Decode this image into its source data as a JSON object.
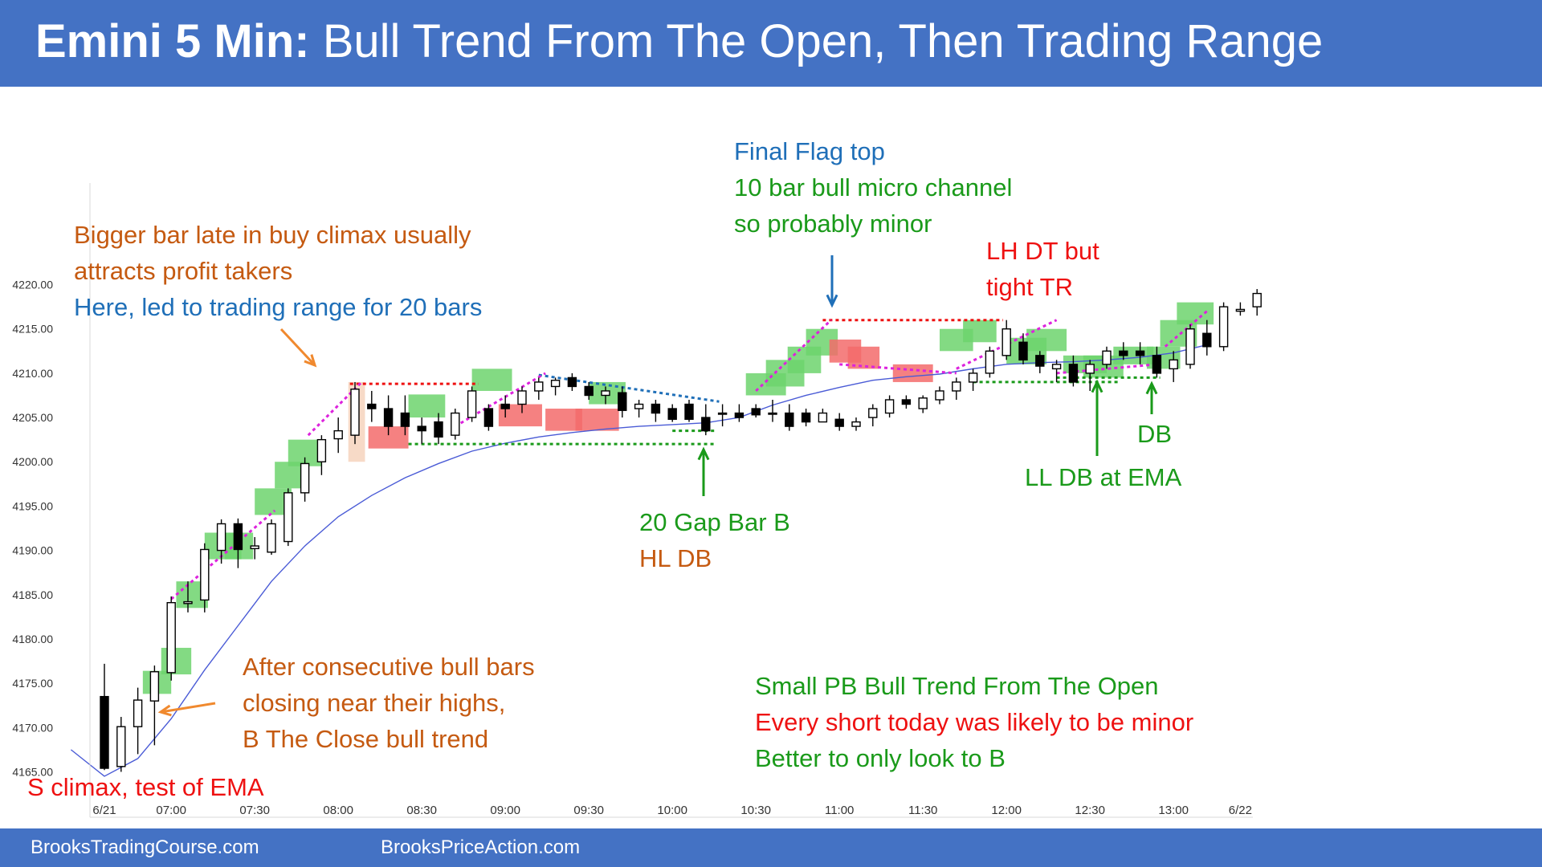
{
  "header": {
    "title_bold": "Emini 5 Min:",
    "title_rest": " Bull Trend From The Open, Then Trading Range"
  },
  "footer": {
    "left": "BrooksTradingCourse.com",
    "right": "BrooksPriceAction.com"
  },
  "colors": {
    "banner": "#4472c4",
    "bull_highlight": "#6dd36d",
    "bear_highlight": "#f36b6b",
    "climax_highlight": "#f6d3bd",
    "ema": "#4a5bd6",
    "resistance_line": "#ee1111",
    "support_line": "#1a9a1a",
    "micro_channel_line": "#dd22dd",
    "bear_trendline": "#1f6fb8",
    "annotation_orange": "#c55a11",
    "annotation_blue": "#1f6fb8",
    "annotation_green": "#1a9a1a",
    "annotation_red": "#ee1111"
  },
  "annotations": {
    "climax_note": {
      "line1": "Bigger bar late in buy climax usually",
      "line2": "attracts profit takers",
      "line3": "Here, led to trading range for 20 bars"
    },
    "final_flag": {
      "line1": "Final Flag top",
      "line2": "10 bar bull micro channel",
      "line3": "so probably minor"
    },
    "lh_dt": {
      "line1": "LH DT but",
      "line2": "tight TR"
    },
    "gap_bar": {
      "line1": "20 Gap Bar B",
      "line2": "HL DB"
    },
    "ll_db": "LL DB at EMA",
    "db": "DB",
    "consecutive": {
      "line1": "After consecutive bull bars",
      "line2": "closing near their highs,",
      "line3": "B The Close bull trend"
    },
    "s_climax": "S climax, test of EMA",
    "summary": {
      "line1": "Small PB Bull Trend From The Open",
      "line2": "Every short today was likely to be minor",
      "line3": "Better to only look to B"
    }
  },
  "chart_data": {
    "type": "candlestick",
    "y_ticks": [
      "4165.00",
      "4170.00",
      "4175.00",
      "4180.00",
      "4185.00",
      "4190.00",
      "4195.00",
      "4200.00",
      "4205.00",
      "4210.00",
      "4215.00",
      "4220.00"
    ],
    "ylim": [
      4163.5,
      4221.5
    ],
    "x_ticks": [
      "6/21",
      "07:00",
      "07:30",
      "08:00",
      "08:30",
      "09:00",
      "09:30",
      "10:00",
      "10:30",
      "11:00",
      "11:30",
      "12:00",
      "12:30",
      "13:00",
      "6/22"
    ],
    "x_tick_bars": [
      0,
      4,
      9,
      14,
      19,
      24,
      29,
      34,
      39,
      44,
      49,
      54,
      59,
      64,
      68
    ],
    "bar_count": 70,
    "candles": [
      {
        "i": 0,
        "o": 4173.5,
        "h": 4177.2,
        "l": 4165.2,
        "c": 4165.4
      },
      {
        "i": 1,
        "o": 4165.6,
        "h": 4171.2,
        "l": 4165.0,
        "c": 4170.1
      },
      {
        "i": 2,
        "o": 4170.1,
        "h": 4174.5,
        "l": 4167.0,
        "c": 4173.1
      },
      {
        "i": 3,
        "o": 4173.0,
        "h": 4177.0,
        "l": 4168.0,
        "c": 4176.3
      },
      {
        "i": 4,
        "o": 4176.2,
        "h": 4184.8,
        "l": 4175.3,
        "c": 4184.1
      },
      {
        "i": 5,
        "o": 4184.0,
        "h": 4186.5,
        "l": 4183.0,
        "c": 4184.2
      },
      {
        "i": 6,
        "o": 4184.4,
        "h": 4190.8,
        "l": 4183.0,
        "c": 4190.1
      },
      {
        "i": 7,
        "o": 4190.0,
        "h": 4193.5,
        "l": 4188.5,
        "c": 4193.0
      },
      {
        "i": 8,
        "o": 4193.0,
        "h": 4193.6,
        "l": 4188.0,
        "c": 4190.1
      },
      {
        "i": 9,
        "o": 4190.2,
        "h": 4191.5,
        "l": 4189.0,
        "c": 4190.5
      },
      {
        "i": 10,
        "o": 4189.8,
        "h": 4193.5,
        "l": 4189.5,
        "c": 4193.0
      },
      {
        "i": 11,
        "o": 4191.0,
        "h": 4197.0,
        "l": 4190.5,
        "c": 4196.5
      },
      {
        "i": 12,
        "o": 4196.5,
        "h": 4200.5,
        "l": 4195.5,
        "c": 4199.8
      },
      {
        "i": 13,
        "o": 4200.0,
        "h": 4203.0,
        "l": 4198.5,
        "c": 4202.5
      },
      {
        "i": 14,
        "o": 4202.6,
        "h": 4205.0,
        "l": 4201.0,
        "c": 4203.5
      },
      {
        "i": 15,
        "o": 4203.0,
        "h": 4209.0,
        "l": 4202.0,
        "c": 4208.2
      },
      {
        "i": 16,
        "o": 4206.5,
        "h": 4208.0,
        "l": 4204.5,
        "c": 4206.0
      },
      {
        "i": 17,
        "o": 4206.0,
        "h": 4207.5,
        "l": 4203.0,
        "c": 4204.0
      },
      {
        "i": 18,
        "o": 4205.5,
        "h": 4207.5,
        "l": 4203.0,
        "c": 4204.0
      },
      {
        "i": 19,
        "o": 4204.0,
        "h": 4205.0,
        "l": 4202.0,
        "c": 4203.5
      },
      {
        "i": 20,
        "o": 4204.5,
        "h": 4205.5,
        "l": 4202.0,
        "c": 4202.8
      },
      {
        "i": 21,
        "o": 4203.0,
        "h": 4206.0,
        "l": 4202.5,
        "c": 4205.5
      },
      {
        "i": 22,
        "o": 4205.0,
        "h": 4208.5,
        "l": 4204.5,
        "c": 4208.0
      },
      {
        "i": 23,
        "o": 4206.0,
        "h": 4206.5,
        "l": 4203.5,
        "c": 4204.0
      },
      {
        "i": 24,
        "o": 4206.5,
        "h": 4207.5,
        "l": 4205.0,
        "c": 4206.0
      },
      {
        "i": 25,
        "o": 4206.5,
        "h": 4208.5,
        "l": 4205.5,
        "c": 4208.0
      },
      {
        "i": 26,
        "o": 4208.0,
        "h": 4209.5,
        "l": 4207.0,
        "c": 4209.0
      },
      {
        "i": 27,
        "o": 4208.5,
        "h": 4209.5,
        "l": 4207.5,
        "c": 4209.2
      },
      {
        "i": 28,
        "o": 4209.5,
        "h": 4210.0,
        "l": 4208.0,
        "c": 4208.5
      },
      {
        "i": 29,
        "o": 4208.5,
        "h": 4209.0,
        "l": 4207.0,
        "c": 4207.5
      },
      {
        "i": 30,
        "o": 4207.5,
        "h": 4208.5,
        "l": 4206.5,
        "c": 4208.0
      },
      {
        "i": 31,
        "o": 4207.8,
        "h": 4208.5,
        "l": 4205.0,
        "c": 4205.8
      },
      {
        "i": 32,
        "o": 4206.0,
        "h": 4207.0,
        "l": 4205.0,
        "c": 4206.5
      },
      {
        "i": 33,
        "o": 4206.5,
        "h": 4207.0,
        "l": 4204.5,
        "c": 4205.5
      },
      {
        "i": 34,
        "o": 4206.0,
        "h": 4206.5,
        "l": 4204.5,
        "c": 4204.8
      },
      {
        "i": 35,
        "o": 4206.5,
        "h": 4207.0,
        "l": 4204.5,
        "c": 4204.8
      },
      {
        "i": 36,
        "o": 4205.0,
        "h": 4206.5,
        "l": 4203.0,
        "c": 4203.5
      },
      {
        "i": 37,
        "o": 4205.5,
        "h": 4206.5,
        "l": 4204.0,
        "c": 4205.5
      },
      {
        "i": 38,
        "o": 4205.5,
        "h": 4206.5,
        "l": 4204.5,
        "c": 4205.0
      },
      {
        "i": 39,
        "o": 4206.0,
        "h": 4206.5,
        "l": 4205.0,
        "c": 4205.3
      },
      {
        "i": 40,
        "o": 4205.5,
        "h": 4207.0,
        "l": 4204.5,
        "c": 4205.5
      },
      {
        "i": 41,
        "o": 4205.5,
        "h": 4206.5,
        "l": 4203.5,
        "c": 4204.0
      },
      {
        "i": 42,
        "o": 4205.5,
        "h": 4206.0,
        "l": 4204.0,
        "c": 4204.5
      },
      {
        "i": 43,
        "o": 4204.5,
        "h": 4206.0,
        "l": 4204.5,
        "c": 4205.5
      },
      {
        "i": 44,
        "o": 4204.8,
        "h": 4205.5,
        "l": 4203.5,
        "c": 4204.0
      },
      {
        "i": 45,
        "o": 4204.0,
        "h": 4205.0,
        "l": 4203.5,
        "c": 4204.5
      },
      {
        "i": 46,
        "o": 4205.0,
        "h": 4206.5,
        "l": 4204.0,
        "c": 4206.0
      },
      {
        "i": 47,
        "o": 4205.5,
        "h": 4207.5,
        "l": 4205.0,
        "c": 4207.0
      },
      {
        "i": 48,
        "o": 4207.0,
        "h": 4207.5,
        "l": 4206.0,
        "c": 4206.5
      },
      {
        "i": 49,
        "o": 4206.0,
        "h": 4207.5,
        "l": 4205.5,
        "c": 4207.2
      },
      {
        "i": 50,
        "o": 4207.0,
        "h": 4208.5,
        "l": 4206.5,
        "c": 4208.0
      },
      {
        "i": 51,
        "o": 4208.0,
        "h": 4209.5,
        "l": 4207.0,
        "c": 4209.0
      },
      {
        "i": 52,
        "o": 4209.0,
        "h": 4210.5,
        "l": 4208.0,
        "c": 4210.0
      },
      {
        "i": 53,
        "o": 4210.0,
        "h": 4213.0,
        "l": 4209.5,
        "c": 4212.5
      },
      {
        "i": 54,
        "o": 4212.0,
        "h": 4216.0,
        "l": 4211.5,
        "c": 4215.0
      }
    ],
    "series_ema_label": "EMA"
  }
}
